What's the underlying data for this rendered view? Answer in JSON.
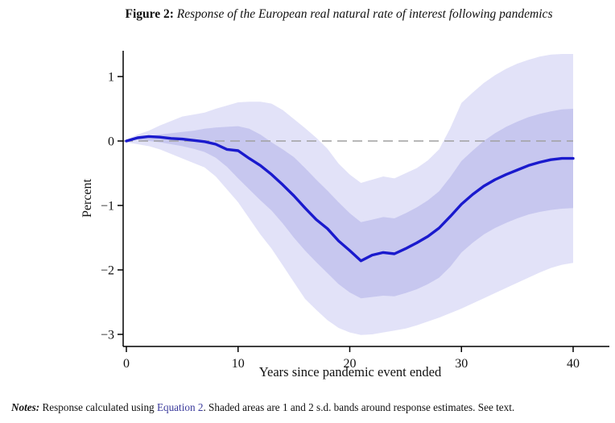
{
  "title": {
    "label": "Figure 2:",
    "text": "Response of the European real natural rate of interest following pandemics"
  },
  "notes": {
    "label": "Notes:",
    "before_link": "Response calculated using",
    "link": "Equation 2",
    "after_link": ". Shaded areas are 1 and 2 s.d. bands around response estimates. See text."
  },
  "colors": {
    "response_line": "#1a1acd",
    "band_1sd": "#c7c7ef",
    "band_2sd": "#e2e2f8",
    "zero_dashed_line": "#a0a0a0",
    "axis": "#000000",
    "link": "#3b3b9c",
    "text": "#111111"
  },
  "chart_data": {
    "type": "line",
    "title": "",
    "xlabel": "Years since pandemic event ended",
    "ylabel": "Percent",
    "xlim": [
      0,
      40
    ],
    "ylim": [
      -3.2,
      1.4
    ],
    "grid": false,
    "legend": "none",
    "zero_line": 0,
    "x_ticks": {
      "values": [
        0,
        10,
        20,
        30,
        40
      ],
      "labels": [
        "0",
        "10",
        "20",
        "30",
        "40"
      ]
    },
    "y_ticks": {
      "values": [
        1,
        0,
        -1,
        -2,
        -3
      ],
      "labels": [
        "1",
        "0",
        "−1",
        "−2",
        "−3"
      ]
    },
    "x": [
      0,
      1,
      2,
      3,
      4,
      5,
      6,
      7,
      8,
      9,
      10,
      11,
      12,
      13,
      14,
      15,
      16,
      17,
      18,
      19,
      20,
      21,
      22,
      23,
      24,
      25,
      26,
      27,
      28,
      29,
      30,
      31,
      32,
      33,
      34,
      35,
      36,
      37,
      38,
      39,
      40
    ],
    "series": [
      {
        "name": "response-estimate",
        "values": [
          0.0,
          0.05,
          0.07,
          0.06,
          0.04,
          0.03,
          0.01,
          -0.01,
          -0.05,
          -0.13,
          -0.15,
          -0.27,
          -0.38,
          -0.52,
          -0.68,
          -0.85,
          -1.04,
          -1.22,
          -1.36,
          -1.55,
          -1.7,
          -1.86,
          -1.77,
          -1.73,
          -1.75,
          -1.67,
          -1.58,
          -1.48,
          -1.35,
          -1.17,
          -0.98,
          -0.83,
          -0.7,
          -0.6,
          -0.52,
          -0.45,
          -0.38,
          -0.33,
          -0.29,
          -0.27,
          -0.27
        ]
      },
      {
        "name": "band-1sd-upper",
        "values": [
          0.01,
          0.05,
          0.08,
          0.1,
          0.12,
          0.14,
          0.16,
          0.19,
          0.21,
          0.22,
          0.23,
          0.19,
          0.1,
          -0.02,
          -0.13,
          -0.25,
          -0.42,
          -0.6,
          -0.77,
          -0.95,
          -1.12,
          -1.26,
          -1.22,
          -1.18,
          -1.2,
          -1.12,
          -1.03,
          -0.92,
          -0.78,
          -0.56,
          -0.31,
          -0.15,
          0.0,
          0.12,
          0.22,
          0.3,
          0.37,
          0.42,
          0.46,
          0.49,
          0.5
        ]
      },
      {
        "name": "band-1sd-lower",
        "values": [
          -0.01,
          0.02,
          0.0,
          -0.02,
          -0.05,
          -0.08,
          -0.12,
          -0.17,
          -0.26,
          -0.4,
          -0.58,
          -0.75,
          -0.92,
          -1.08,
          -1.28,
          -1.5,
          -1.7,
          -1.88,
          -2.05,
          -2.22,
          -2.35,
          -2.44,
          -2.42,
          -2.4,
          -2.41,
          -2.36,
          -2.3,
          -2.22,
          -2.12,
          -1.95,
          -1.73,
          -1.58,
          -1.45,
          -1.35,
          -1.27,
          -1.2,
          -1.14,
          -1.1,
          -1.07,
          -1.05,
          -1.04
        ]
      },
      {
        "name": "band-2sd-upper",
        "values": [
          0.02,
          0.1,
          0.16,
          0.24,
          0.31,
          0.38,
          0.41,
          0.44,
          0.5,
          0.55,
          0.6,
          0.61,
          0.61,
          0.58,
          0.48,
          0.34,
          0.2,
          0.05,
          -0.12,
          -0.35,
          -0.52,
          -0.65,
          -0.6,
          -0.55,
          -0.58,
          -0.5,
          -0.42,
          -0.3,
          -0.13,
          0.2,
          0.59,
          0.75,
          0.9,
          1.02,
          1.12,
          1.2,
          1.26,
          1.31,
          1.34,
          1.35,
          1.35
        ]
      },
      {
        "name": "band-2sd-lower",
        "values": [
          -0.02,
          -0.05,
          -0.08,
          -0.13,
          -0.2,
          -0.27,
          -0.34,
          -0.41,
          -0.55,
          -0.75,
          -0.95,
          -1.2,
          -1.45,
          -1.67,
          -1.93,
          -2.19,
          -2.45,
          -2.62,
          -2.78,
          -2.9,
          -2.97,
          -3.01,
          -3.0,
          -2.97,
          -2.94,
          -2.91,
          -2.86,
          -2.8,
          -2.74,
          -2.67,
          -2.6,
          -2.52,
          -2.44,
          -2.36,
          -2.28,
          -2.2,
          -2.12,
          -2.04,
          -1.97,
          -1.92,
          -1.89
        ]
      }
    ]
  }
}
